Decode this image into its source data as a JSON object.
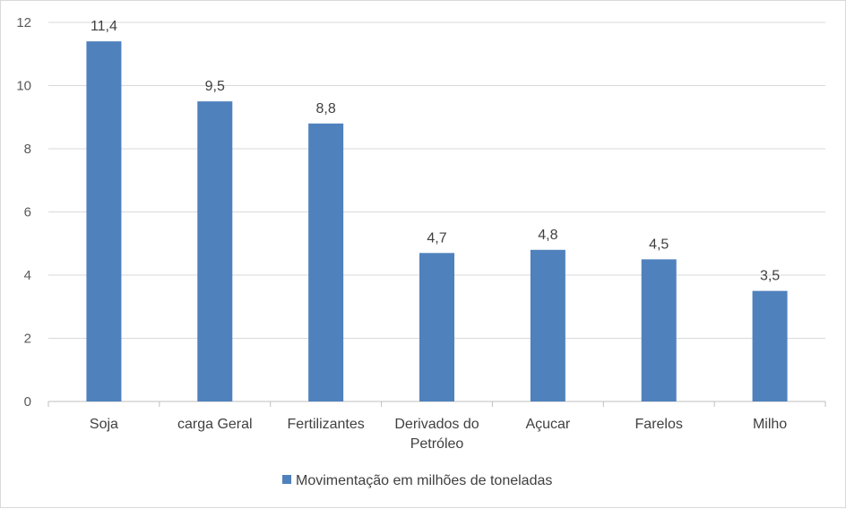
{
  "chart_data": {
    "type": "bar",
    "categories": [
      "Soja",
      "carga Geral",
      "Fertilizantes",
      "Derivados do Petróleo",
      "Açucar",
      "Farelos",
      "Milho"
    ],
    "category_lines": [
      [
        "Soja"
      ],
      [
        "carga Geral"
      ],
      [
        "Fertilizantes"
      ],
      [
        "Derivados do",
        "Petróleo"
      ],
      [
        "Açucar"
      ],
      [
        "Farelos"
      ],
      [
        "Milho"
      ]
    ],
    "series": [
      {
        "name": "Movimentação em milhões de toneladas",
        "values": [
          11.4,
          9.5,
          8.8,
          4.7,
          4.8,
          4.5,
          3.5
        ]
      }
    ],
    "data_labels": [
      "11,4",
      "9,5",
      "8,8",
      "4,7",
      "4,8",
      "4,5",
      "3,5"
    ],
    "y_ticks": [
      "0",
      "2",
      "4",
      "6",
      "8",
      "10",
      "12"
    ],
    "ylim": [
      0,
      12
    ],
    "grid": true,
    "legend_position": "bottom",
    "colors": {
      "bar": "#4f81bd",
      "grid": "#d9d9d9",
      "axis": "#bfbfbf"
    }
  }
}
